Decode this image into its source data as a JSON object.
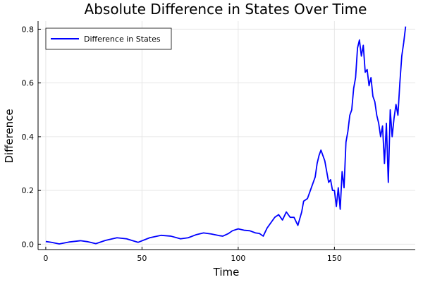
{
  "chart_data": {
    "type": "line",
    "title": "Absolute Difference in States Over Time",
    "xlabel": "Time",
    "ylabel": "Difference",
    "xlim": [
      -4,
      192
    ],
    "ylim": [
      -0.02,
      0.83
    ],
    "xticks": [
      0,
      50,
      100,
      150
    ],
    "yticks": [
      0.0,
      0.2,
      0.4,
      0.6,
      0.8
    ],
    "xtick_labels": [
      "0",
      "50",
      "100",
      "150"
    ],
    "ytick_labels": [
      "0.0",
      "0.2",
      "0.4",
      "0.6",
      "0.8"
    ],
    "grid": true,
    "legend_position": "top-left",
    "series": [
      {
        "name": "Difference in States",
        "color": "#0000ff",
        "x": [
          0,
          3,
          7,
          12,
          18,
          22,
          26,
          31,
          37,
          42,
          48,
          54,
          60,
          65,
          70,
          74,
          78,
          82,
          86,
          90,
          92,
          95,
          97,
          100,
          103,
          106,
          109,
          111,
          113,
          115,
          117,
          119,
          121,
          123,
          125,
          127,
          129,
          131,
          133,
          134,
          136,
          138,
          140,
          141,
          142,
          143,
          144,
          145,
          146,
          147,
          148,
          149,
          150,
          151,
          152,
          153,
          154,
          155,
          156,
          157,
          158,
          159,
          160,
          161,
          162,
          163,
          164,
          165,
          166,
          167,
          168,
          169,
          170,
          171,
          172,
          173,
          174,
          175,
          176,
          177,
          178,
          179,
          180,
          181,
          182,
          183,
          184,
          185,
          186,
          187
        ],
        "values": [
          0.01,
          0.007,
          0.001,
          0.008,
          0.013,
          0.009,
          0.002,
          0.014,
          0.024,
          0.02,
          0.007,
          0.024,
          0.033,
          0.03,
          0.02,
          0.024,
          0.035,
          0.042,
          0.038,
          0.032,
          0.03,
          0.04,
          0.05,
          0.057,
          0.052,
          0.05,
          0.042,
          0.04,
          0.03,
          0.06,
          0.08,
          0.1,
          0.11,
          0.09,
          0.12,
          0.1,
          0.1,
          0.07,
          0.12,
          0.16,
          0.17,
          0.21,
          0.25,
          0.3,
          0.33,
          0.35,
          0.33,
          0.31,
          0.27,
          0.23,
          0.24,
          0.2,
          0.2,
          0.14,
          0.21,
          0.13,
          0.27,
          0.21,
          0.38,
          0.42,
          0.48,
          0.5,
          0.58,
          0.62,
          0.73,
          0.76,
          0.7,
          0.74,
          0.64,
          0.65,
          0.59,
          0.62,
          0.55,
          0.53,
          0.48,
          0.45,
          0.4,
          0.44,
          0.3,
          0.45,
          0.23,
          0.5,
          0.4,
          0.47,
          0.52,
          0.48,
          0.6,
          0.7,
          0.75,
          0.81
        ]
      }
    ]
  }
}
